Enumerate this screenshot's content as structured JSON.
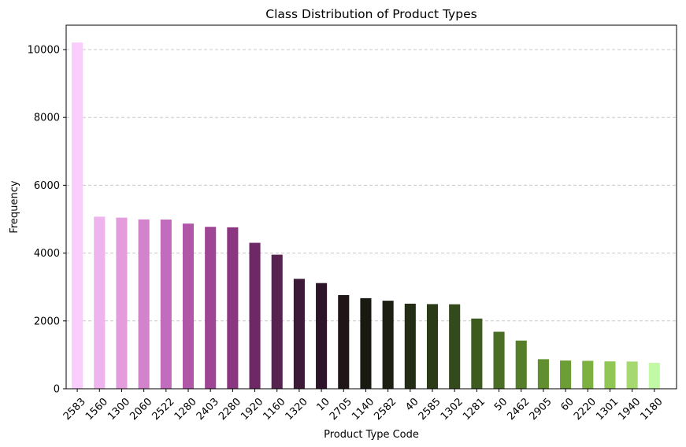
{
  "chart_data": {
    "type": "bar",
    "title": "Class Distribution of Product Types",
    "xlabel": "Product Type Code",
    "ylabel": "Frequency",
    "categories": [
      "2583",
      "1560",
      "1300",
      "2060",
      "2522",
      "1280",
      "2403",
      "2280",
      "1920",
      "1160",
      "1320",
      "10",
      "2705",
      "1140",
      "2582",
      "40",
      "2585",
      "1302",
      "1281",
      "50",
      "2462",
      "2905",
      "60",
      "2220",
      "1301",
      "1940",
      "1180"
    ],
    "values": [
      10209,
      5073,
      5045,
      4993,
      4989,
      4870,
      4774,
      4760,
      4303,
      3953,
      3241,
      3116,
      2761,
      2671,
      2596,
      2508,
      2496,
      2491,
      2070,
      1681,
      1421,
      872,
      832,
      824,
      807,
      803,
      764
    ],
    "colors": [
      "#f9cdfc",
      "#efb3ed",
      "#e39ddd",
      "#d283cc",
      "#c26cbd",
      "#b057a8",
      "#9e4596",
      "#8b3680",
      "#6f2866",
      "#572250",
      "#3e1a39",
      "#2e1428",
      "#201617",
      "#191811",
      "#1d1f12",
      "#232d16",
      "#2b3b18",
      "#334a1d",
      "#3d5b1f",
      "#4a6e24",
      "#557d2a",
      "#618f30",
      "#6d9d35",
      "#7cb140",
      "#90c653",
      "#a5d86f",
      "#c2f9a4"
    ],
    "yticks": [
      0,
      2000,
      4000,
      6000,
      8000,
      10000
    ],
    "ylim": [
      0,
      10719
    ],
    "grid": "y-dashed",
    "legend": "none"
  }
}
